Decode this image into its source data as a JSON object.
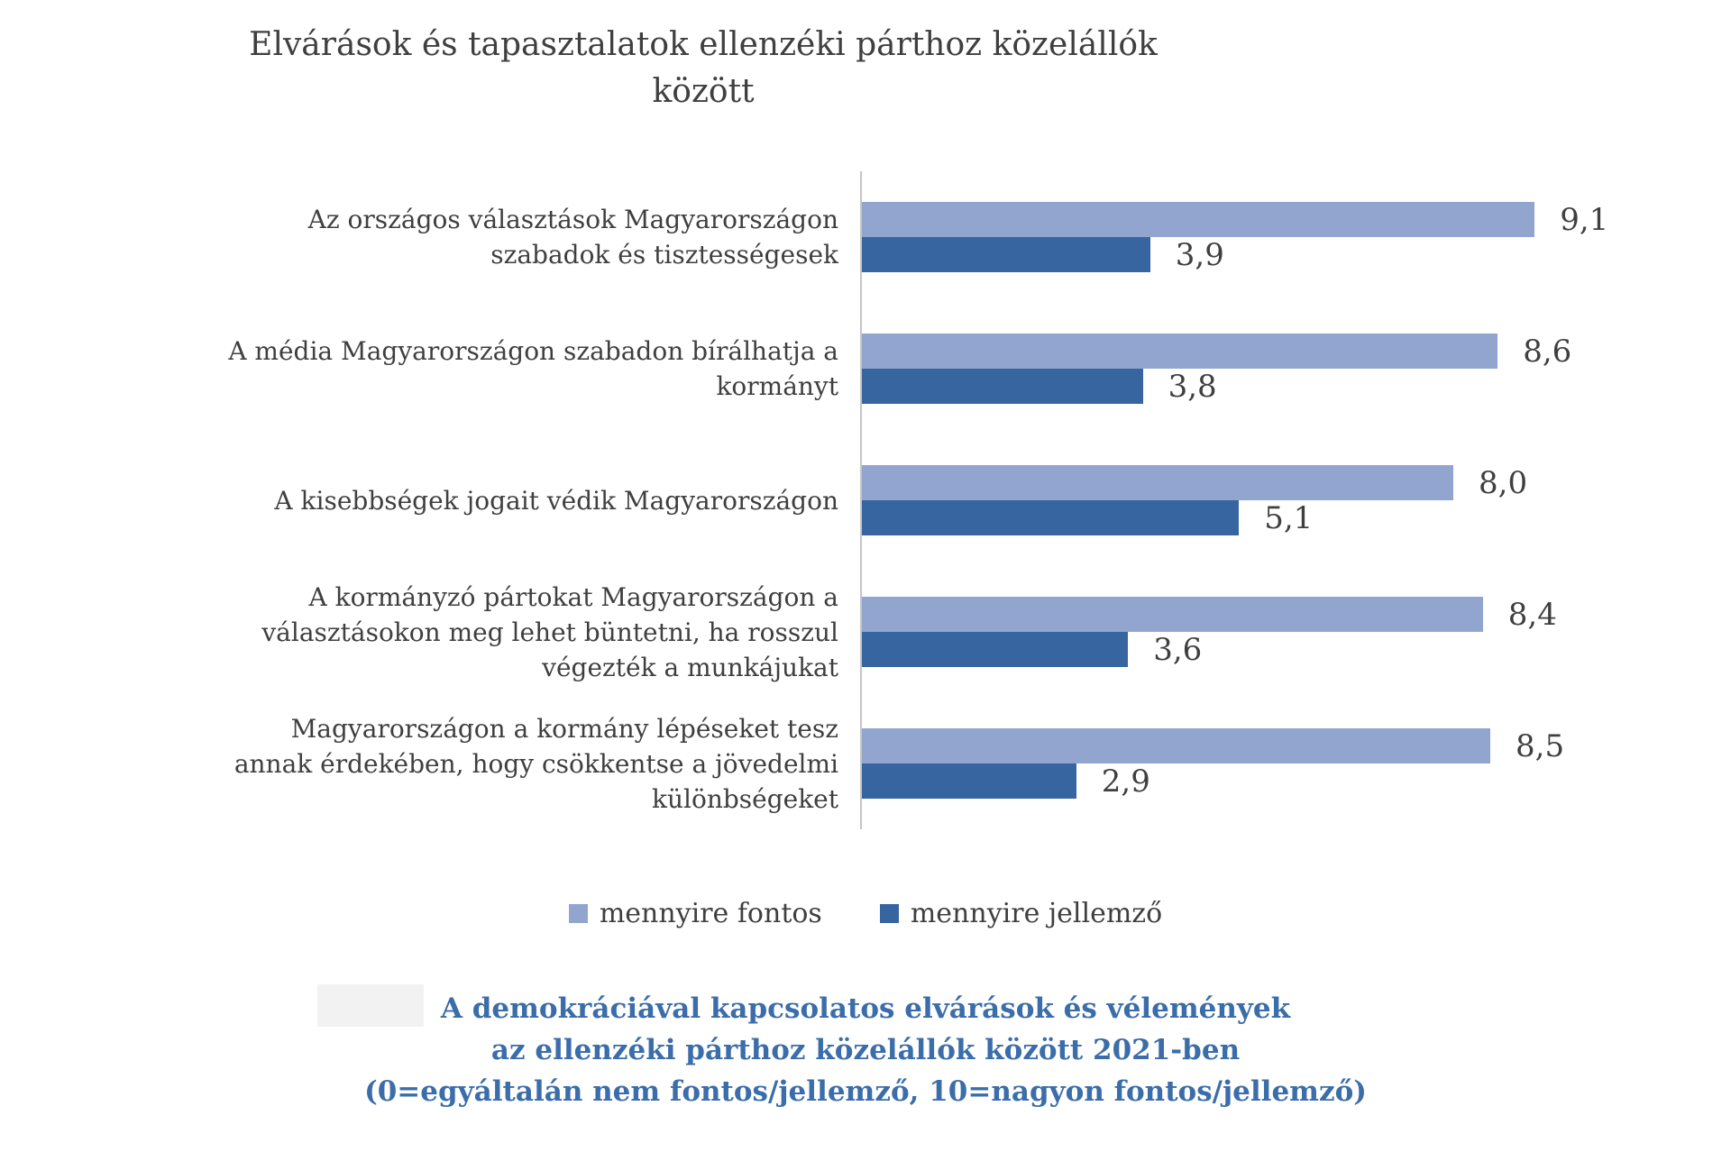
{
  "title": "Elvárások és tapasztalatok ellenzéki párthoz közelállók\nközött",
  "chart_data": {
    "type": "bar",
    "orientation": "horizontal",
    "title": "Elvárások és tapasztalatok ellenzéki párthoz közelállók között",
    "categories": [
      "Az országos választások Magyarországon\nszabadok és tisztességesek",
      "A média Magyarországon szabadon bírálhatja a\nkormányt",
      "A kisebbségek jogait védik Magyarországon",
      "A kormányzó pártokat Magyarországon a\nválasztásokon meg lehet büntetni, ha rosszul\nvégezték a munkájukat",
      "Magyarországon a kormány lépéseket tesz\nannak érdekében, hogy csökkentse a jövedelmi\nkülönbségeket"
    ],
    "series": [
      {
        "name": "mennyire fontos",
        "color": "#91a5ce",
        "values": [
          9.1,
          8.6,
          8.0,
          8.4,
          8.5
        ],
        "value_labels": [
          "9,1",
          "8,6",
          "8,0",
          "8,4",
          "8,5"
        ]
      },
      {
        "name": "mennyire jellemző",
        "color": "#3665a0",
        "values": [
          3.9,
          3.8,
          5.1,
          3.6,
          2.9
        ],
        "value_labels": [
          "3,9",
          "3,8",
          "5,1",
          "3,6",
          "2,9"
        ]
      }
    ],
    "xlabel": "",
    "ylabel": "",
    "xlim": [
      0,
      10
    ],
    "grid": false,
    "legend_position": "bottom",
    "value_labels_shown": true
  },
  "caption": {
    "text": "A demokráciával kapcsolatos elvárások és vélemények\naz ellenzéki párthoz közelállók között 2021-ben\n(0=egyáltalán nem fontos/jellemző, 10=nagyon fontos/jellemző)"
  },
  "colors": {
    "bar_light": "#91a5ce",
    "bar_dark": "#3665a0",
    "title_text": "#3f3f3f",
    "label_text": "#3f3f3f",
    "caption_text": "#3b6daa",
    "axis_line": "#c5c5c5"
  }
}
